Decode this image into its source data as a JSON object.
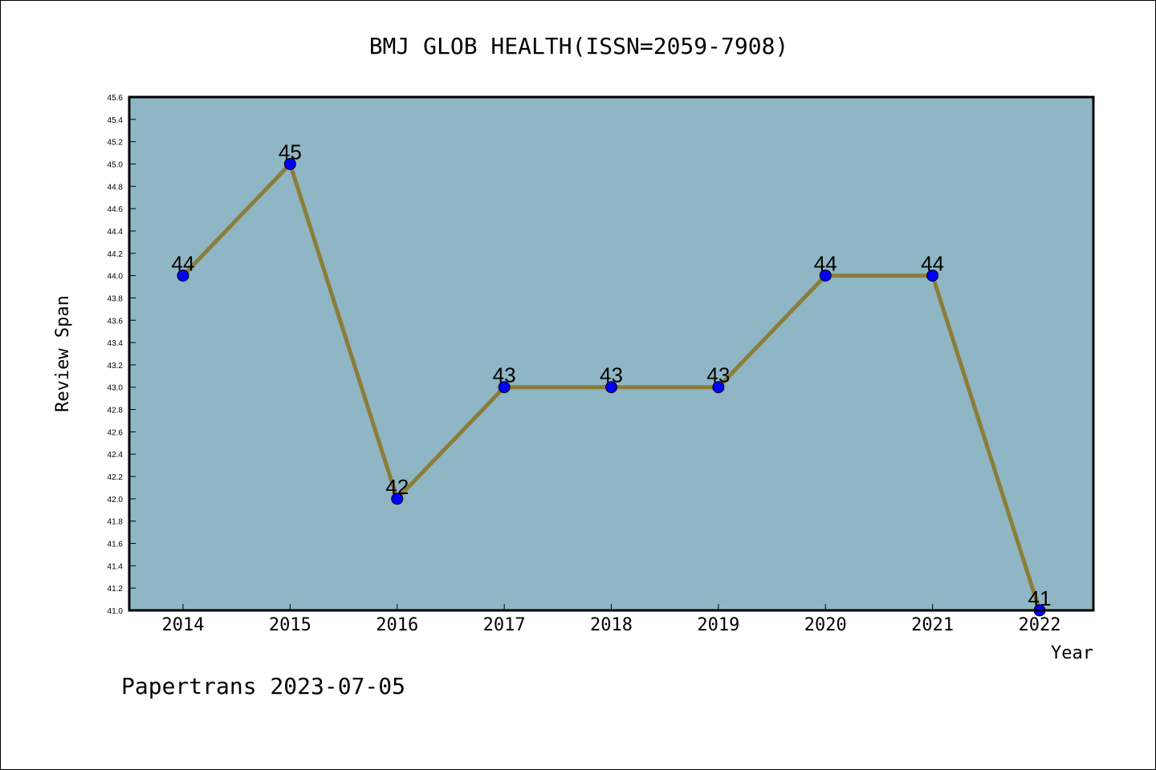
{
  "chart_data": {
    "type": "line",
    "title": "BMJ GLOB HEALTH(ISSN=2059-7908)",
    "xlabel": "Year",
    "ylabel": "Review Span",
    "categories": [
      "2014",
      "2015",
      "2016",
      "2017",
      "2018",
      "2019",
      "2020",
      "2021",
      "2022"
    ],
    "series": [
      {
        "values": [
          44,
          45,
          42,
          43,
          43,
          43,
          44,
          44,
          41
        ]
      }
    ],
    "data_labels": [
      "44",
      "45",
      "42",
      "43",
      "43",
      "43",
      "44",
      "44",
      "41"
    ],
    "ylim": [
      41.0,
      45.6
    ],
    "yticks": [
      "41.0",
      "41.2",
      "41.4",
      "41.6",
      "41.8",
      "42.0",
      "42.2",
      "42.4",
      "42.6",
      "42.8",
      "43.0",
      "43.2",
      "43.4",
      "43.6",
      "43.8",
      "44.0",
      "44.2",
      "44.4",
      "44.6",
      "44.8",
      "45.0",
      "45.2",
      "45.4",
      "45.6"
    ],
    "grid": false,
    "colors": {
      "plot_background": "#8fb6c4",
      "line": "#8b7d3a",
      "marker": "#0000ff"
    }
  },
  "footer": {
    "watermark": "Papertrans 2023-07-05"
  }
}
